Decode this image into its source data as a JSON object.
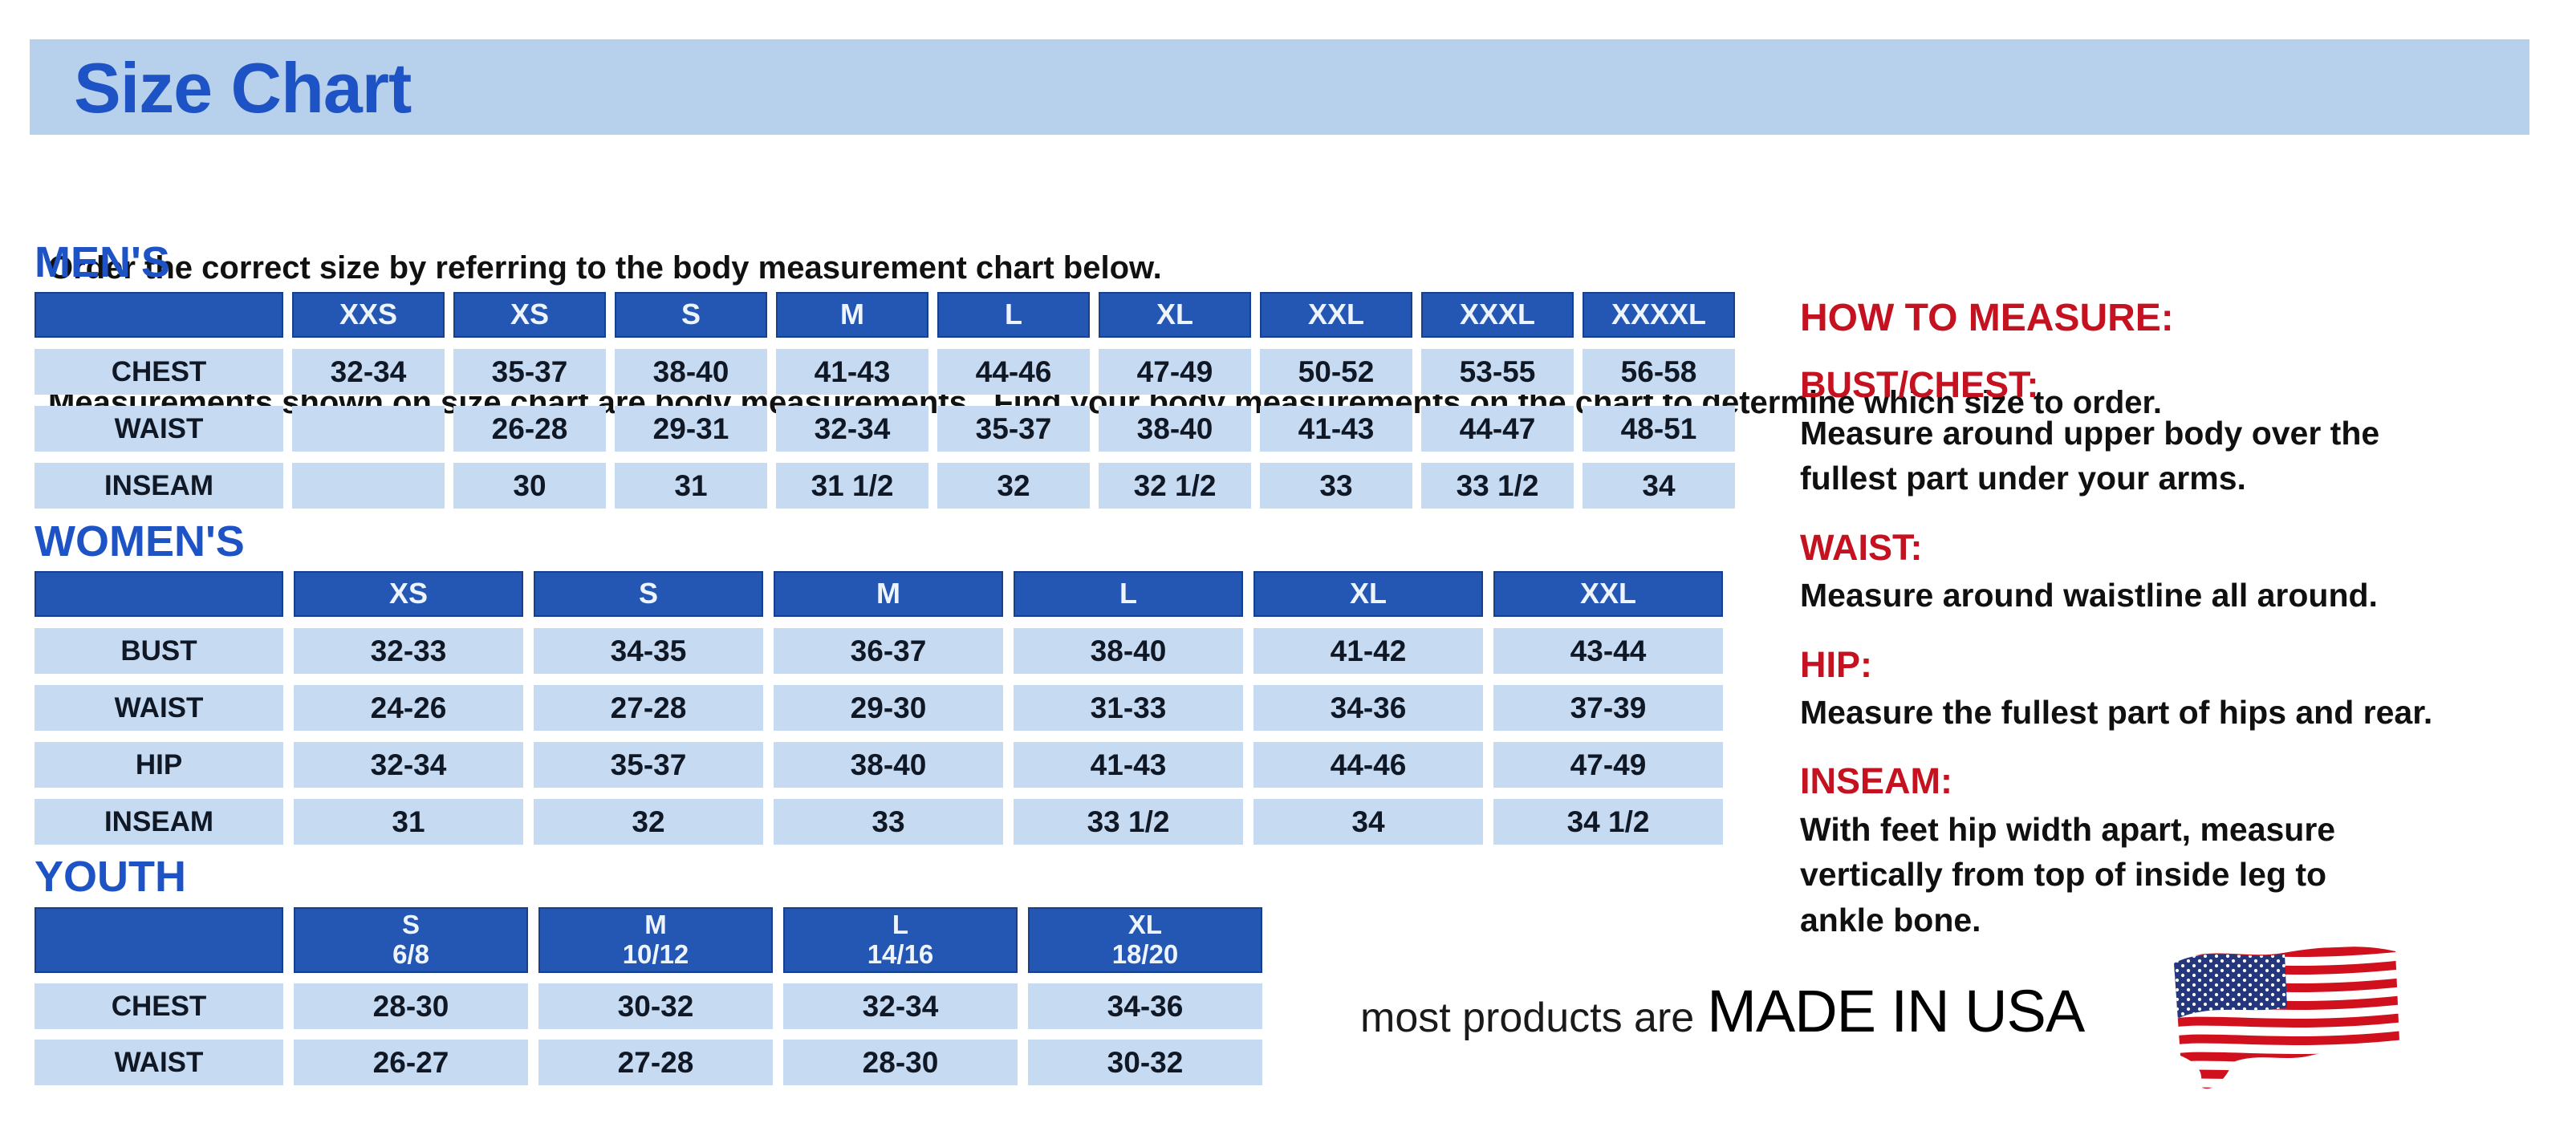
{
  "page": {
    "title": "Size Chart",
    "intro_line1": "Order the correct size by referring to the body measurement chart below.",
    "intro_line2": "Measurements shown on size chart are body measurements.  Find your body measurements on the chart to determine which size to order."
  },
  "colors": {
    "banner_bg": "#b7d1ed",
    "title_blue": "#1d53c4",
    "table_header_blue": "#2456b4",
    "table_cell_blue": "#c6dbf2",
    "accent_red": "#c41220",
    "flag_red": "#d0111d",
    "flag_blue": "#24367c"
  },
  "tables": {
    "mens": {
      "heading": "MEN'S",
      "columns": [
        "XXS",
        "XS",
        "S",
        "M",
        "L",
        "XL",
        "XXL",
        "XXXL",
        "XXXXL"
      ],
      "rows": [
        {
          "label": "CHEST",
          "values": [
            "32-34",
            "35-37",
            "38-40",
            "41-43",
            "44-46",
            "47-49",
            "50-52",
            "53-55",
            "56-58"
          ]
        },
        {
          "label": "WAIST",
          "values": [
            "",
            "26-28",
            "29-31",
            "32-34",
            "35-37",
            "38-40",
            "41-43",
            "44-47",
            "48-51"
          ]
        },
        {
          "label": "INSEAM",
          "values": [
            "",
            "30",
            "31",
            "31 1/2",
            "32",
            "32 1/2",
            "33",
            "33 1/2",
            "34"
          ]
        }
      ]
    },
    "womens": {
      "heading": "WOMEN'S",
      "columns": [
        "XS",
        "S",
        "M",
        "L",
        "XL",
        "XXL"
      ],
      "rows": [
        {
          "label": "BUST",
          "values": [
            "32-33",
            "34-35",
            "36-37",
            "38-40",
            "41-42",
            "43-44"
          ]
        },
        {
          "label": "WAIST",
          "values": [
            "24-26",
            "27-28",
            "29-30",
            "31-33",
            "34-36",
            "37-39"
          ]
        },
        {
          "label": "HIP",
          "values": [
            "32-34",
            "35-37",
            "38-40",
            "41-43",
            "44-46",
            "47-49"
          ]
        },
        {
          "label": "INSEAM",
          "values": [
            "31",
            "32",
            "33",
            "33 1/2",
            "34",
            "34 1/2"
          ]
        }
      ]
    },
    "youth": {
      "heading": "YOUTH",
      "columns": [
        "S\n6/8",
        "M\n10/12",
        "L\n14/16",
        "XL\n18/20"
      ],
      "rows": [
        {
          "label": "CHEST",
          "values": [
            "28-30",
            "30-32",
            "32-34",
            "34-36"
          ]
        },
        {
          "label": "WAIST",
          "values": [
            "26-27",
            "27-28",
            "28-30",
            "30-32"
          ]
        }
      ]
    }
  },
  "how_to_measure": {
    "heading": "HOW TO MEASURE:",
    "items": [
      {
        "label": "BUST/CHEST:",
        "text": "Measure around upper body over the\nfullest part under your arms."
      },
      {
        "label": "WAIST:",
        "text": "Measure around waistline all around."
      },
      {
        "label": "HIP:",
        "text": "Measure the fullest part of hips and rear."
      },
      {
        "label": "INSEAM:",
        "text": "With feet hip width apart, measure\nvertically from top of inside leg to\nankle bone."
      }
    ]
  },
  "footer": {
    "made_in_prefix": "most products are",
    "made_in_main": "MADE IN USA",
    "flag_icon": "us-flag-icon"
  }
}
